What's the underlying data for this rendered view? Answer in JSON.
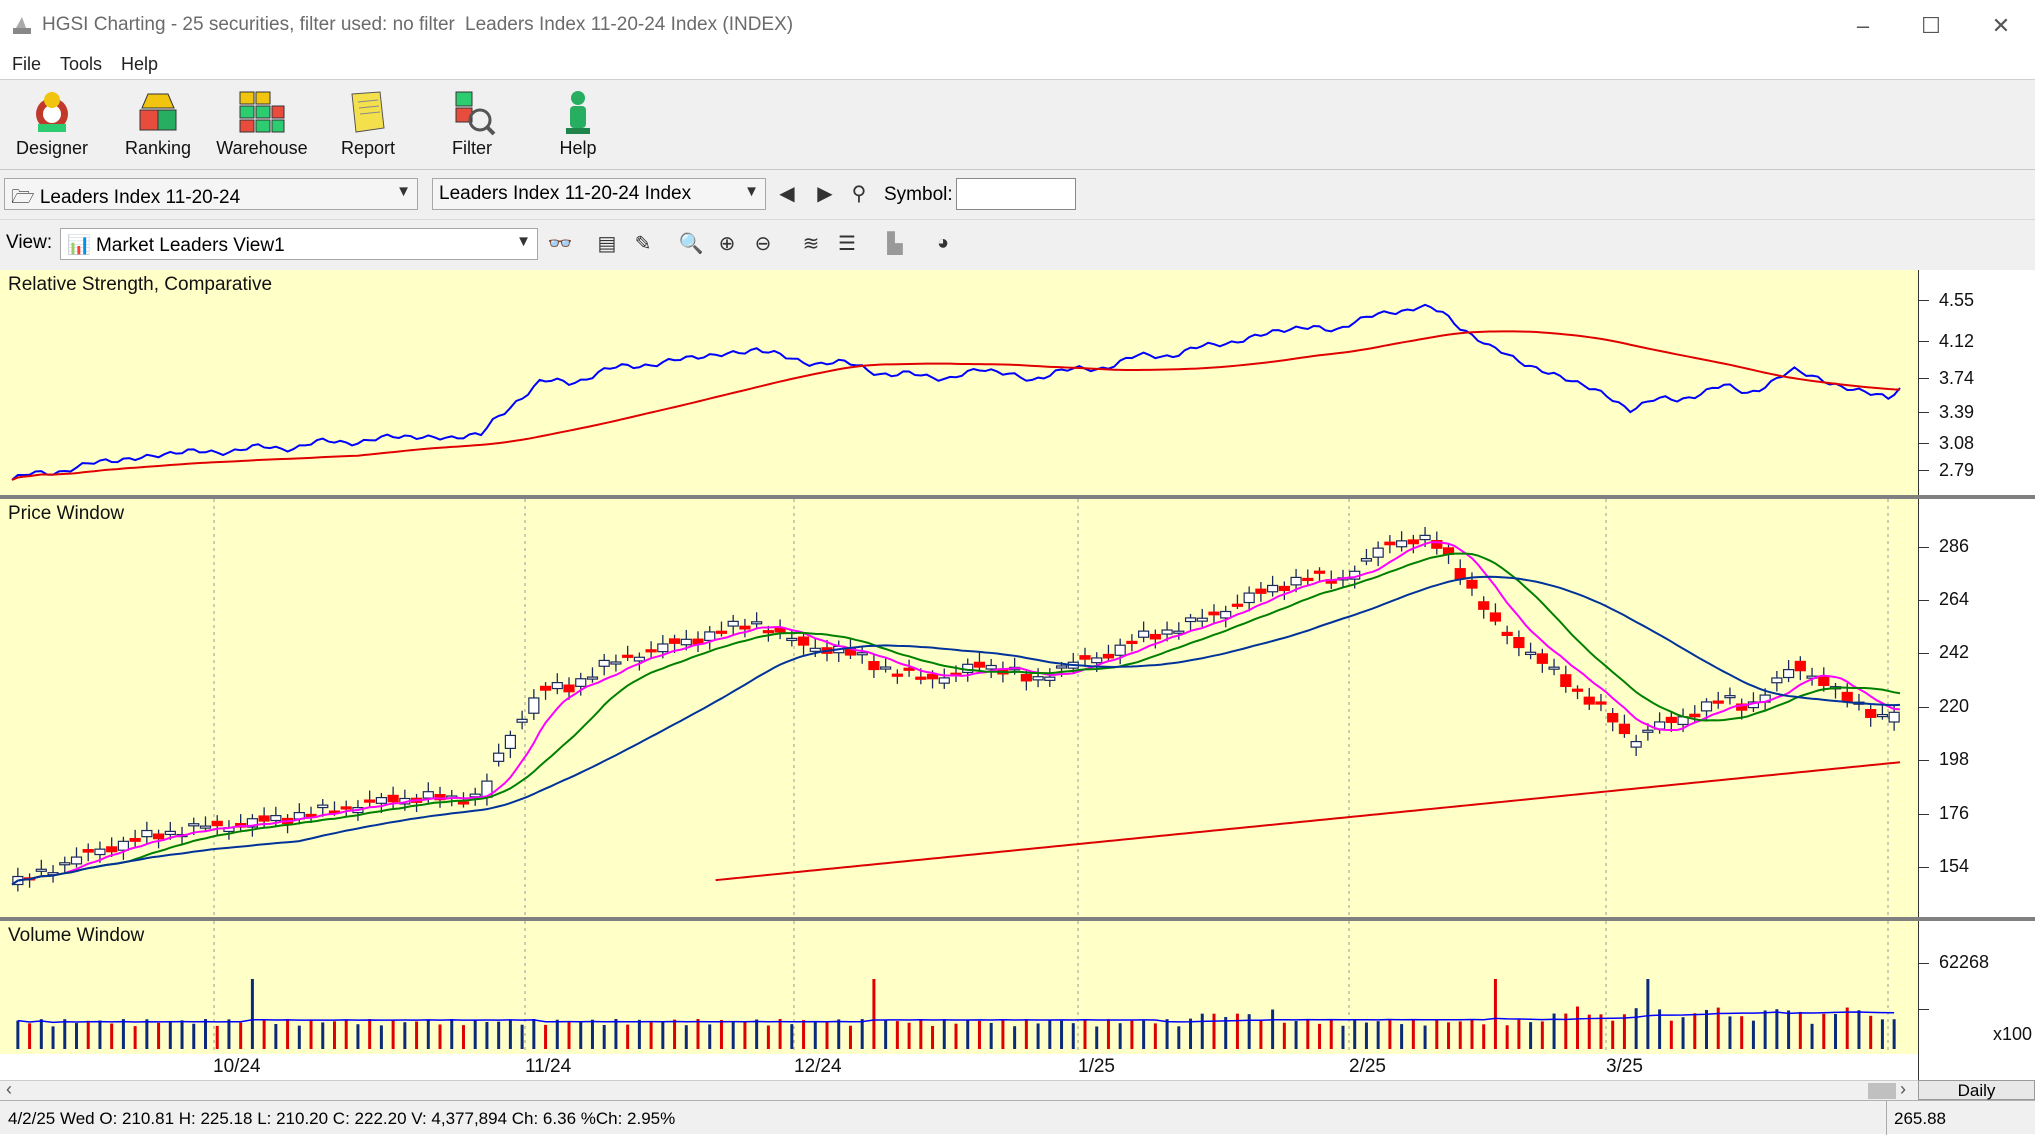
{
  "window": {
    "title": "HGSI Charting - 25 securities, filter used: no filter",
    "document_title": "Leaders Index 11-20-24 Index (INDEX)",
    "minimize": "–",
    "maximize": "☐",
    "close": "✕"
  },
  "menu": [
    "File",
    "Tools",
    "Help"
  ],
  "toolbar": [
    {
      "label": "Designer",
      "icon": "designer-icon"
    },
    {
      "label": "Ranking",
      "icon": "ranking-icon"
    },
    {
      "label": "Warehouse",
      "icon": "warehouse-icon"
    },
    {
      "label": "Report",
      "icon": "report-icon"
    },
    {
      "label": "Filter",
      "icon": "filter-icon"
    },
    {
      "label": "Help",
      "icon": "help-icon"
    }
  ],
  "selectors": {
    "list": "Leaders Index 11-20-24",
    "security": "Leaders Index 11-20-24 Index",
    "symbol_label": "Symbol:",
    "symbol_value": ""
  },
  "view": {
    "label": "View:",
    "value": "Market Leaders View1"
  },
  "panels": {
    "rs": {
      "title": "Relative Strength, Comparative",
      "ticks": [
        "4.55",
        "4.12",
        "3.74",
        "3.39",
        "3.08",
        "2.79"
      ]
    },
    "price": {
      "title": "Price Window",
      "ticks": [
        "286",
        "264",
        "242",
        "220",
        "198",
        "176",
        "154"
      ]
    },
    "volume": {
      "title": "Volume Window",
      "ticks": [
        "62268"
      ],
      "multiplier": "x100"
    }
  },
  "x_axis": [
    "10/24",
    "11/24",
    "12/24",
    "1/25",
    "2/25",
    "3/25"
  ],
  "period_button": "Daily",
  "status": {
    "ohlc": "4/2/25 Wed O: 210.81 H: 225.18 L: 210.20 C: 222.20 V: 4,377,894 Ch: 6.36 %Ch: 2.95%",
    "cursor_value": "265.88"
  },
  "colors": {
    "panel_bg": "#ffffc8",
    "up_candle": "#ffffff",
    "down_candle": "#ff0000",
    "rs_line": "#0000ff",
    "rs_ma": "#e00000",
    "ma_fast": "#ff00ff",
    "ma_mid": "#008000",
    "ma_slow": "#003399",
    "ma_long": "#dd0000"
  }
}
